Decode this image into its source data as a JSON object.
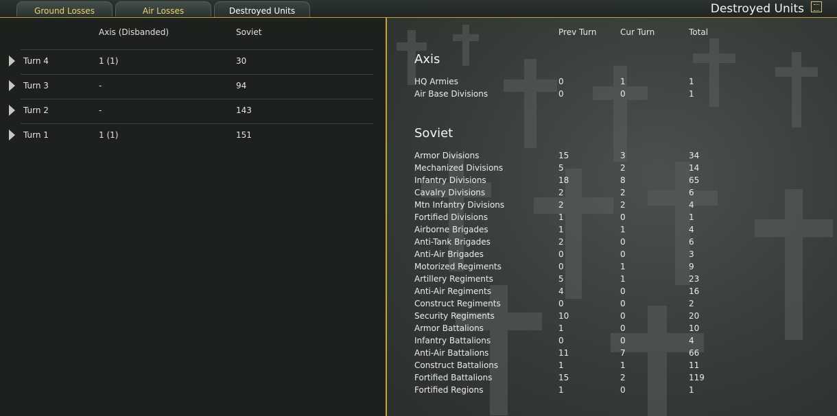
{
  "tabs": [
    {
      "label": "Ground Losses",
      "active": false
    },
    {
      "label": "Air Losses",
      "active": false
    },
    {
      "label": "Destroyed Units",
      "active": true
    }
  ],
  "window_title": "Destroyed Units",
  "title_icon": "notes-icon",
  "colors": {
    "accent": "#c9a43e",
    "tab_text": "#ecd36a"
  },
  "left": {
    "headers": [
      "Axis (Disbanded)",
      "Soviet"
    ],
    "rows": [
      {
        "turn": "Turn 4",
        "axis": "1 (1)",
        "soviet": "30"
      },
      {
        "turn": "Turn 3",
        "axis": "-",
        "soviet": "94"
      },
      {
        "turn": "Turn 2",
        "axis": "-",
        "soviet": "143"
      },
      {
        "turn": "Turn 1",
        "axis": "1 (1)",
        "soviet": "151"
      }
    ]
  },
  "right": {
    "headers": [
      "Prev Turn",
      "Cur Turn",
      "Total"
    ],
    "sections": [
      {
        "title": "Axis",
        "rows": [
          {
            "name": "HQ Armies",
            "prev": "0",
            "cur": "1",
            "total": "1"
          },
          {
            "name": "Air Base Divisions",
            "prev": "0",
            "cur": "0",
            "total": "1"
          }
        ]
      },
      {
        "title": "Soviet",
        "rows": [
          {
            "name": "Armor Divisions",
            "prev": "15",
            "cur": "3",
            "total": "34"
          },
          {
            "name": "Mechanized Divisions",
            "prev": "5",
            "cur": "2",
            "total": "14"
          },
          {
            "name": "Infantry Divisions",
            "prev": "18",
            "cur": "8",
            "total": "65"
          },
          {
            "name": "Cavalry Divisions",
            "prev": "2",
            "cur": "2",
            "total": "6"
          },
          {
            "name": "Mtn Infantry Divisions",
            "prev": "2",
            "cur": "2",
            "total": "4"
          },
          {
            "name": "Fortified Divisions",
            "prev": "1",
            "cur": "0",
            "total": "1"
          },
          {
            "name": "Airborne Brigades",
            "prev": "1",
            "cur": "1",
            "total": "4"
          },
          {
            "name": "Anti-Tank Brigades",
            "prev": "2",
            "cur": "0",
            "total": "6"
          },
          {
            "name": "Anti-Air Brigades",
            "prev": "0",
            "cur": "0",
            "total": "3"
          },
          {
            "name": "Motorized Regiments",
            "prev": "0",
            "cur": "1",
            "total": "9"
          },
          {
            "name": "Artillery Regiments",
            "prev": "5",
            "cur": "1",
            "total": "23"
          },
          {
            "name": "Anti-Air Regiments",
            "prev": "4",
            "cur": "0",
            "total": "16"
          },
          {
            "name": "Construct Regiments",
            "prev": "0",
            "cur": "0",
            "total": "2"
          },
          {
            "name": "Security Regiments",
            "prev": "10",
            "cur": "0",
            "total": "20"
          },
          {
            "name": "Armor Battalions",
            "prev": "1",
            "cur": "0",
            "total": "10"
          },
          {
            "name": "Infantry Battalions",
            "prev": "0",
            "cur": "0",
            "total": "4"
          },
          {
            "name": "Anti-Air Battalions",
            "prev": "11",
            "cur": "7",
            "total": "66"
          },
          {
            "name": "Construct Battalions",
            "prev": "1",
            "cur": "1",
            "total": "11"
          },
          {
            "name": "Fortified Battalions",
            "prev": "15",
            "cur": "2",
            "total": "119"
          },
          {
            "name": "Fortified Regions",
            "prev": "1",
            "cur": "0",
            "total": "1"
          }
        ]
      }
    ]
  }
}
